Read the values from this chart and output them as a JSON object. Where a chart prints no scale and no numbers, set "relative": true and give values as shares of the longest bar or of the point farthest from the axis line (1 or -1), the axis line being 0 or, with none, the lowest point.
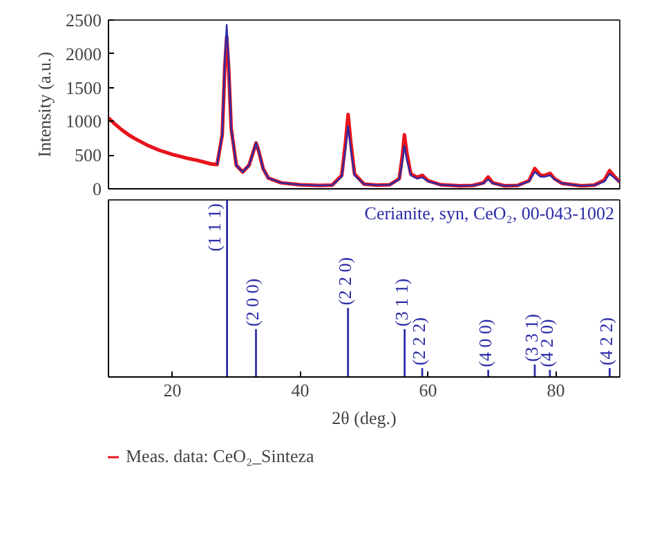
{
  "chart_data": [
    {
      "type": "line",
      "ylabel": "Intensity (a.u.)",
      "xlim": [
        10,
        90
      ],
      "xticks": [
        20,
        40,
        60,
        80
      ],
      "ylim": [
        0,
        2500
      ],
      "yticks": [
        0,
        500,
        1000,
        1500,
        2000,
        2500
      ],
      "tick_labels": "y",
      "grid": false,
      "legend": "bottom",
      "line_style": "solid",
      "x": [
        10,
        11,
        12,
        13,
        14,
        16,
        18,
        20,
        22,
        24,
        26,
        27,
        27.8,
        28.2,
        28.5,
        28.8,
        29.2,
        30,
        31,
        32,
        32.7,
        33.1,
        33.5,
        34.2,
        35,
        37,
        40,
        43,
        45,
        46.5,
        47.1,
        47.5,
        47.9,
        48.5,
        50,
        52,
        54,
        55.5,
        56,
        56.3,
        56.7,
        57.3,
        58.3,
        59.1,
        60,
        62,
        65,
        67,
        68.7,
        69.4,
        70.1,
        72,
        74,
        75.8,
        76.7,
        77.6,
        78.3,
        79.1,
        79.8,
        81,
        84,
        86,
        87.6,
        88.4,
        89.2,
        90
      ],
      "series": [
        {
          "name": "Meas. data: CeO₂_Sinteza",
          "color": "#e8141c",
          "values": [
            1050,
            960,
            880,
            810,
            750,
            650,
            570,
            510,
            460,
            420,
            370,
            360,
            800,
            1800,
            2250,
            1800,
            900,
            350,
            250,
            350,
            560,
            680,
            560,
            300,
            160,
            90,
            60,
            50,
            55,
            200,
            700,
            1100,
            700,
            220,
            70,
            55,
            60,
            150,
            500,
            800,
            520,
            220,
            170,
            200,
            120,
            60,
            45,
            50,
            90,
            175,
            90,
            45,
            50,
            120,
            300,
            200,
            200,
            230,
            150,
            80,
            45,
            55,
            130,
            270,
            180,
            100
          ]
        },
        {
          "color": "#2b2ba8",
          "values": [
            null,
            null,
            null,
            null,
            null,
            null,
            null,
            null,
            null,
            null,
            null,
            360,
            800,
            1900,
            2430,
            1900,
            900,
            350,
            250,
            350,
            560,
            680,
            560,
            300,
            160,
            90,
            60,
            50,
            55,
            180,
            600,
            930,
            600,
            200,
            70,
            55,
            60,
            140,
            420,
            640,
            420,
            200,
            150,
            170,
            110,
            60,
            45,
            50,
            80,
            140,
            80,
            45,
            50,
            110,
            250,
            180,
            180,
            200,
            140,
            80,
            45,
            55,
            110,
            220,
            160,
            100
          ]
        }
      ]
    },
    {
      "type": "bar",
      "relative": true,
      "xlim": [
        10,
        90
      ],
      "xticks": [
        20,
        40,
        60,
        80
      ],
      "tick_labels": "x",
      "xlabel": "2θ (deg.)",
      "grid": false,
      "color": "#2b2ba8",
      "x": [
        28.55,
        33.08,
        47.48,
        56.34,
        59.09,
        69.42,
        76.7,
        79.07,
        88.42
      ],
      "values": [
        1.0,
        0.27,
        0.39,
        0.27,
        0.05,
        0.04,
        0.07,
        0.04,
        0.05
      ],
      "annotations": [
        {
          "text": "(1 1 1)",
          "x": 28.55,
          "y": 1.0
        },
        {
          "text": "(2 0 0)",
          "x": 33.08,
          "y": 0.27
        },
        {
          "text": "(2 2 0)",
          "x": 47.48,
          "y": 0.39
        },
        {
          "text": "(3 1 1)",
          "x": 56.34,
          "y": 0.27
        },
        {
          "text": "(2 2 2)",
          "x": 59.09,
          "y": 0.05
        },
        {
          "text": "(4 0 0)",
          "x": 69.42,
          "y": 0.04
        },
        {
          "text": "(3 3 1)",
          "x": 76.7,
          "y": 0.07
        },
        {
          "text": "(4 2 0)",
          "x": 79.07,
          "y": 0.04
        },
        {
          "text": "(4 2 2)",
          "x": 88.42,
          "y": 0.05
        },
        "Cerianite, syn, CeO₂, 00-043-1002"
      ]
    }
  ]
}
